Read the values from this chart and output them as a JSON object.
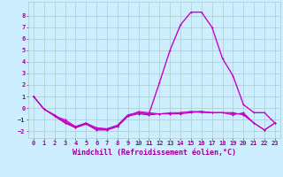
{
  "xlabel": "Windchill (Refroidissement éolien,°C)",
  "ylabel": "",
  "background_color": "#cceeff",
  "grid_color": "#aacccc",
  "line_color": "#990099",
  "xlim": [
    -0.5,
    23.5
  ],
  "ylim": [
    -2.6,
    9.2
  ],
  "yticks": [
    -2,
    -1,
    0,
    1,
    2,
    3,
    4,
    5,
    6,
    7,
    8
  ],
  "xticks": [
    0,
    1,
    2,
    3,
    4,
    5,
    6,
    7,
    8,
    9,
    10,
    11,
    12,
    13,
    14,
    15,
    16,
    17,
    18,
    19,
    20,
    21,
    22,
    23
  ],
  "lines": [
    {
      "x": [
        0,
        1,
        2,
        3,
        4,
        5,
        6,
        7,
        8,
        9,
        10,
        11,
        12,
        13,
        14,
        15,
        16,
        17,
        18,
        19,
        20,
        21,
        22,
        23
      ],
      "y": [
        1.0,
        -0.1,
        -0.6,
        -1.2,
        -1.7,
        -1.3,
        -1.8,
        -1.8,
        -1.5,
        -0.6,
        -0.4,
        -0.5,
        2.2,
        5.0,
        7.2,
        8.3,
        8.3,
        7.0,
        4.3,
        2.8,
        0.3,
        -0.4,
        -0.4,
        -1.3
      ],
      "color": "#cc00cc",
      "linewidth": 1.0,
      "marker": "+"
    },
    {
      "x": [
        0,
        1,
        2,
        3,
        4,
        5,
        6,
        7,
        8,
        9,
        10,
        11,
        12,
        13,
        14,
        15,
        16,
        17,
        18,
        19,
        20,
        21,
        22,
        23
      ],
      "y": [
        1.0,
        -0.1,
        -0.7,
        -1.3,
        -1.7,
        -1.4,
        -1.9,
        -1.9,
        -1.6,
        -0.7,
        -0.5,
        -0.6,
        -0.5,
        -0.5,
        -0.5,
        -0.4,
        -0.3,
        -0.4,
        -0.4,
        -0.4,
        -0.6,
        -1.3,
        -1.9,
        -1.3
      ],
      "color": "#aa00aa",
      "linewidth": 0.8,
      "marker": "+"
    },
    {
      "x": [
        2,
        3,
        4,
        5,
        6,
        7,
        8,
        9,
        10,
        11,
        12,
        13,
        14,
        15,
        16,
        17,
        18,
        19,
        20,
        21,
        22,
        23
      ],
      "y": [
        -0.7,
        -1.0,
        -1.6,
        -1.3,
        -1.7,
        -1.8,
        -1.5,
        -0.6,
        -0.4,
        -0.5,
        -0.5,
        -0.5,
        -0.4,
        -0.3,
        -0.4,
        -0.4,
        -0.4,
        -0.5,
        -0.5,
        -1.3,
        -1.9,
        -1.3
      ],
      "color": "#cc00cc",
      "linewidth": 0.7,
      "marker": "+"
    },
    {
      "x": [
        2,
        3,
        4,
        5,
        6,
        7,
        8,
        9,
        10,
        11,
        12,
        13,
        14,
        15,
        16,
        17,
        18,
        19,
        20,
        21,
        22,
        23
      ],
      "y": [
        -0.7,
        -1.1,
        -1.6,
        -1.3,
        -1.8,
        -1.9,
        -1.6,
        -0.7,
        -0.3,
        -0.4,
        -0.5,
        -0.4,
        -0.4,
        -0.3,
        -0.3,
        -0.4,
        -0.4,
        -0.6,
        -0.4,
        -1.3,
        -1.9,
        -1.3
      ],
      "color": "#cc00cc",
      "linewidth": 0.7,
      "marker": "+"
    }
  ],
  "tick_fontsize": 5.0,
  "label_fontsize": 6.0
}
